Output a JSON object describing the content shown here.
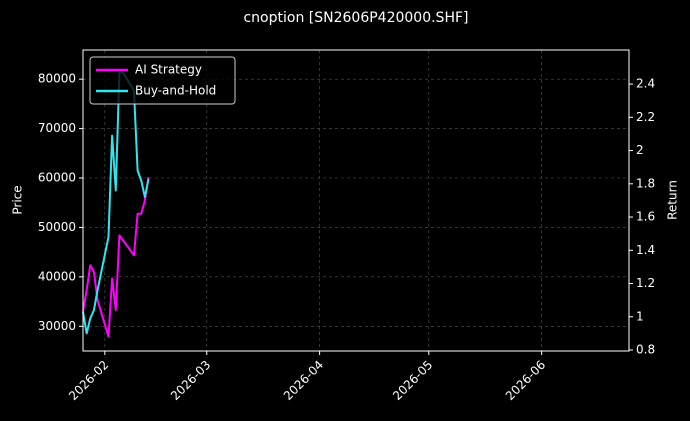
{
  "chart_data": {
    "type": "line",
    "title": "cnoption [SN2606P420000.SHF]",
    "ylabel": "Price",
    "y2label": "Return",
    "x": [
      "2026-01-26",
      "2026-01-27",
      "2026-01-28",
      "2026-01-29",
      "2026-01-30",
      "2026-02-02",
      "2026-02-03",
      "2026-02-04",
      "2026-02-05",
      "2026-02-06",
      "2026-02-09",
      "2026-02-10",
      "2026-02-11",
      "2026-02-12",
      "2026-02-13"
    ],
    "xlim": [
      "2026-01-26",
      "2026-06-25"
    ],
    "xticks": [
      {
        "value": "2026-02-01",
        "label": "2026-02"
      },
      {
        "value": "2026-03-01",
        "label": "2026-03"
      },
      {
        "value": "2026-04-01",
        "label": "2026-04"
      },
      {
        "value": "2026-05-01",
        "label": "2026-05"
      },
      {
        "value": "2026-06-01",
        "label": "2026-06"
      }
    ],
    "ylim": [
      25000,
      85900
    ],
    "yticks": [
      30000,
      40000,
      50000,
      60000,
      70000,
      80000
    ],
    "y2lim": [
      0.794,
      2.605
    ],
    "y2ticks": [
      0.8,
      1.0,
      1.2,
      1.4,
      1.6,
      1.8,
      2.0,
      2.2,
      2.4
    ],
    "grid": true,
    "legend": "upper left",
    "series": [
      {
        "name": "AI Strategy",
        "color": "#ff00ff",
        "axis": "y2",
        "values": [
          1.03,
          1.16,
          1.31,
          1.27,
          1.1,
          0.88,
          1.23,
          1.04,
          1.49,
          1.46,
          1.37,
          1.62,
          1.62,
          1.7,
          1.84
        ]
      },
      {
        "name": "Buy-and-Hold",
        "color": "#2ee6f0",
        "axis": "y2",
        "values": [
          1.03,
          0.9,
          0.99,
          1.04,
          1.16,
          1.48,
          2.09,
          1.76,
          2.47,
          2.47,
          2.36,
          1.88,
          1.82,
          1.72,
          1.83
        ]
      }
    ]
  }
}
